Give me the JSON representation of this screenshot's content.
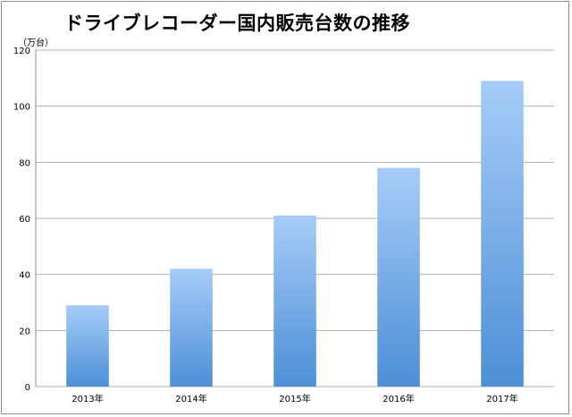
{
  "chart_data": {
    "type": "bar",
    "title": "ドライブレコーダー国内販売台数の推移",
    "unit_label": "（万台）",
    "categories": [
      "2013年",
      "2014年",
      "2015年",
      "2016年",
      "2017年"
    ],
    "values": [
      29,
      42,
      61,
      78,
      109
    ],
    "ylim": [
      0,
      120
    ],
    "yticks": [
      "0",
      "20",
      "40",
      "60",
      "80",
      "100",
      "120"
    ],
    "grid": true,
    "legend": "none",
    "colors": {
      "bar_top": "#a6ccf8",
      "bar_bottom": "#4d8fd6",
      "grid": "#b0b0b0"
    }
  }
}
